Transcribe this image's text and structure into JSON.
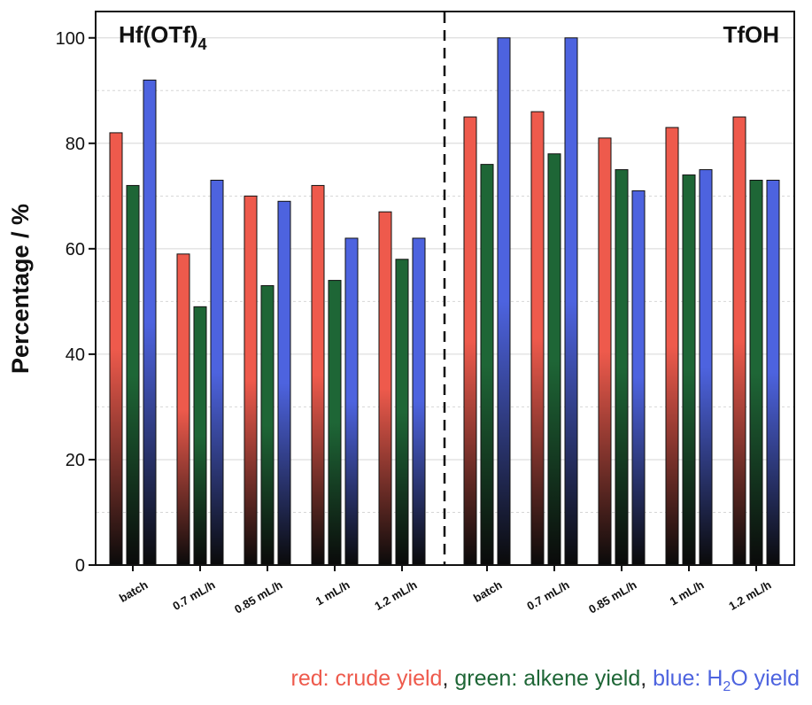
{
  "chart_data": {
    "type": "bar",
    "ylabel": "Percentage / %",
    "ylim": [
      0,
      105
    ],
    "yticks": [
      0,
      20,
      40,
      60,
      80,
      100
    ],
    "grid": true,
    "panels": [
      {
        "title_main": "Hf(OTf)",
        "title_sub": "4",
        "title_align": "left",
        "categories": [
          "batch",
          "0.7 mL/h",
          "0.85 mL/h",
          "1 mL/h",
          "1.2 mL/h"
        ],
        "crude": [
          82,
          59,
          70,
          72,
          67
        ],
        "alkene": [
          72,
          49,
          53,
          54,
          58
        ],
        "h2o": [
          92,
          73,
          69,
          62,
          62
        ]
      },
      {
        "title_main": "TfOH",
        "title_sub": "",
        "title_align": "right",
        "categories": [
          "batch",
          "0.7 mL/h",
          "0.85 mL/h",
          "1 mL/h",
          "1.2 mL/h"
        ],
        "crude": [
          85,
          86,
          81,
          83,
          85
        ],
        "alkene": [
          76,
          78,
          75,
          74,
          73
        ],
        "h2o": [
          100,
          100,
          71,
          75,
          73
        ]
      }
    ],
    "colors": {
      "crude": "#ee5a4c",
      "alkene": "#1e6636",
      "h2o": "#4d63df"
    }
  },
  "legend": {
    "red": "red: crude yield",
    "green": "green: alkene yield",
    "blue_pre": "blue: H",
    "blue_sub": "2",
    "blue_post": "O yield",
    "sep": ", "
  }
}
